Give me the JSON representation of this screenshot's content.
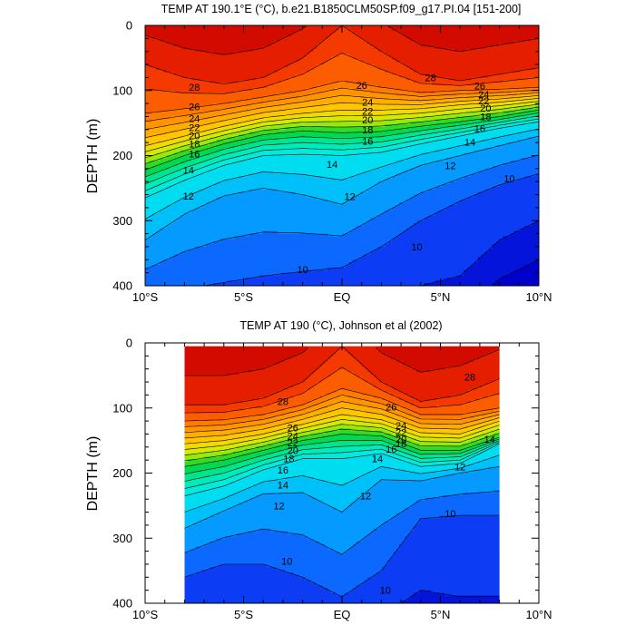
{
  "chart_data": [
    {
      "type": "heatmap",
      "subtype": "filled-contour",
      "title": "TEMP AT 190.1°E (°C), b.e21.B1850CLM50SP.f09_g17.PI.04 [151-200]",
      "ylabel": "DEPTH (m)",
      "xlabel": "",
      "xlim": [
        -10,
        10
      ],
      "ylim": [
        400,
        0
      ],
      "y_inverted": true,
      "x_ticks": [
        -10,
        -5,
        0,
        5,
        10
      ],
      "x_tick_labels": [
        "10°S",
        "5°S",
        "EQ",
        "5°N",
        "10°N"
      ],
      "y_ticks": [
        0,
        100,
        200,
        300,
        400
      ],
      "y_tick_labels": [
        "0",
        "100",
        "200",
        "300",
        "400"
      ],
      "data_xrange": [
        -10,
        10
      ],
      "contour_levels": [
        8,
        9,
        10,
        11,
        12,
        13,
        14,
        15,
        16,
        17,
        18,
        19,
        20,
        21,
        22,
        23,
        24,
        25,
        26,
        27,
        28,
        29
      ],
      "isotherm_depths": {
        "x": [
          -10,
          -8,
          -6,
          -4,
          -2,
          0,
          2,
          4,
          6,
          8,
          10
        ],
        "28": [
          60,
          80,
          90,
          80,
          50,
          0,
          40,
          75,
          85,
          75,
          65
        ],
        "26": [
          135,
          128,
          120,
          110,
          100,
          85,
          95,
          103,
          100,
          98,
          95
        ],
        "22": [
          185,
          170,
          155,
          142,
          135,
          130,
          130,
          128,
          122,
          118,
          112
        ],
        "18": [
          222,
          200,
          182,
          168,
          162,
          165,
          163,
          155,
          148,
          140,
          130
        ],
        "14": [
          265,
          238,
          215,
          200,
          198,
          200,
          195,
          182,
          170,
          158,
          148
        ],
        "12": [
          330,
          290,
          262,
          250,
          260,
          275,
          240,
          215,
          200,
          185,
          170
        ],
        "10": [
          420,
          405,
          395,
          385,
          378,
          372,
          340,
          300,
          270,
          245,
          228
        ],
        "9": [
          440,
          435,
          430,
          425,
          420,
          415,
          410,
          400,
          385,
          330,
          300
        ]
      },
      "contour_labels": [
        {
          "text": "28",
          "x": -7.5,
          "y": 95
        },
        {
          "text": "28",
          "x": 4.5,
          "y": 80
        },
        {
          "text": "26",
          "x": -7.5,
          "y": 125
        },
        {
          "text": "26",
          "x": 1.0,
          "y": 92
        },
        {
          "text": "26",
          "x": 7.0,
          "y": 93
        },
        {
          "text": "24",
          "x": -7.5,
          "y": 143
        },
        {
          "text": "24",
          "x": 1.3,
          "y": 118
        },
        {
          "text": "24",
          "x": 7.2,
          "y": 106
        },
        {
          "text": "22",
          "x": -7.5,
          "y": 157
        },
        {
          "text": "22",
          "x": 1.3,
          "y": 132
        },
        {
          "text": "22",
          "x": 7.2,
          "y": 116
        },
        {
          "text": "20",
          "x": -7.5,
          "y": 169
        },
        {
          "text": "20",
          "x": 1.3,
          "y": 145
        },
        {
          "text": "20",
          "x": 7.3,
          "y": 127
        },
        {
          "text": "18",
          "x": -7.5,
          "y": 182
        },
        {
          "text": "18",
          "x": 1.3,
          "y": 160
        },
        {
          "text": "18",
          "x": 7.3,
          "y": 140
        },
        {
          "text": "16",
          "x": -7.5,
          "y": 197
        },
        {
          "text": "16",
          "x": 1.3,
          "y": 178
        },
        {
          "text": "16",
          "x": 7.0,
          "y": 158
        },
        {
          "text": "14",
          "x": -7.8,
          "y": 222
        },
        {
          "text": "14",
          "x": -0.5,
          "y": 213
        },
        {
          "text": "14",
          "x": 6.5,
          "y": 179
        },
        {
          "text": "12",
          "x": -7.8,
          "y": 262
        },
        {
          "text": "12",
          "x": 0.4,
          "y": 263
        },
        {
          "text": "12",
          "x": 5.5,
          "y": 215
        },
        {
          "text": "10",
          "x": -2.0,
          "y": 375
        },
        {
          "text": "10",
          "x": 3.8,
          "y": 340
        },
        {
          "text": "10",
          "x": 8.5,
          "y": 235
        }
      ]
    },
    {
      "type": "heatmap",
      "subtype": "filled-contour",
      "title": "TEMP AT 190 (°C), Johnson et al (2002)",
      "ylabel": "DEPTH (m)",
      "xlabel": "",
      "xlim": [
        -10,
        10
      ],
      "ylim": [
        400,
        0
      ],
      "y_inverted": true,
      "x_ticks": [
        -10,
        -5,
        0,
        5,
        10
      ],
      "x_tick_labels": [
        "10°S",
        "5°S",
        "EQ",
        "5°N",
        "10°N"
      ],
      "y_ticks": [
        0,
        100,
        200,
        300,
        400
      ],
      "y_tick_labels": [
        "0",
        "100",
        "200",
        "300",
        "400"
      ],
      "data_xrange": [
        -8,
        8
      ],
      "data_yrange": [
        5,
        400
      ],
      "contour_levels": [
        8,
        9,
        10,
        11,
        12,
        13,
        14,
        15,
        16,
        17,
        18,
        19,
        20,
        21,
        22,
        23,
        24,
        25,
        26,
        27,
        28,
        29
      ],
      "isotherm_depths": {
        "x": [
          -8,
          -6,
          -4,
          -2,
          0,
          2,
          4,
          6,
          8
        ],
        "28": [
          95,
          95,
          85,
          60,
          5,
          60,
          90,
          80,
          55
        ],
        "26": [
          120,
          118,
          110,
          95,
          70,
          85,
          110,
          110,
          100
        ],
        "22": [
          155,
          150,
          140,
          125,
          110,
          118,
          138,
          140,
          120
        ],
        "18": [
          190,
          180,
          165,
          150,
          140,
          143,
          165,
          165,
          145
        ],
        "14": [
          235,
          220,
          195,
          178,
          178,
          170,
          190,
          185,
          155
        ],
        "12": [
          285,
          258,
          232,
          230,
          260,
          210,
          212,
          200,
          190
        ],
        "10": [
          360,
          340,
          340,
          360,
          390,
          350,
          270,
          265,
          265
        ],
        "9": [
          420,
          420,
          420,
          420,
          420,
          420,
          380,
          390,
          390
        ]
      },
      "contour_labels": [
        {
          "text": "28",
          "x": -3.0,
          "y": 90
        },
        {
          "text": "28",
          "x": 6.5,
          "y": 52
        },
        {
          "text": "26",
          "x": -2.5,
          "y": 130
        },
        {
          "text": "26",
          "x": 2.5,
          "y": 98
        },
        {
          "text": "24",
          "x": -2.5,
          "y": 143
        },
        {
          "text": "24",
          "x": 3.0,
          "y": 127
        },
        {
          "text": "22",
          "x": -2.5,
          "y": 153
        },
        {
          "text": "22",
          "x": 3.0,
          "y": 137
        },
        {
          "text": "20",
          "x": -2.5,
          "y": 165
        },
        {
          "text": "20",
          "x": 3.0,
          "y": 148
        },
        {
          "text": "18",
          "x": -2.7,
          "y": 178
        },
        {
          "text": "18",
          "x": 3.0,
          "y": 155
        },
        {
          "text": "16",
          "x": -3.0,
          "y": 195
        },
        {
          "text": "16",
          "x": 2.5,
          "y": 163
        },
        {
          "text": "14",
          "x": -3.0,
          "y": 218
        },
        {
          "text": "14",
          "x": 1.8,
          "y": 178
        },
        {
          "text": "14",
          "x": 7.5,
          "y": 148
        },
        {
          "text": "12",
          "x": -3.2,
          "y": 250
        },
        {
          "text": "12",
          "x": 1.2,
          "y": 235
        },
        {
          "text": "12",
          "x": 6.0,
          "y": 190
        },
        {
          "text": "10",
          "x": -2.8,
          "y": 335
        },
        {
          "text": "10",
          "x": 2.2,
          "y": 380
        },
        {
          "text": "10",
          "x": 5.5,
          "y": 262
        }
      ]
    }
  ]
}
